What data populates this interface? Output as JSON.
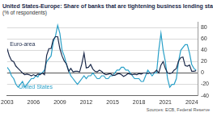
{
  "chart_data": {
    "type": "line",
    "title": "United States-Europe: Share of banks that are tightening business lending standards",
    "subtitle": "(% of respondents)",
    "source": "Sources: ECB, Federal Reserve",
    "x": [
      2003,
      2003.25,
      2003.5,
      2003.75,
      2004,
      2004.25,
      2004.5,
      2004.75,
      2005,
      2005.25,
      2005.5,
      2005.75,
      2006,
      2006.25,
      2006.5,
      2006.75,
      2007,
      2007.25,
      2007.5,
      2007.75,
      2008,
      2008.25,
      2008.5,
      2008.75,
      2009,
      2009.25,
      2009.5,
      2009.75,
      2010,
      2010.25,
      2010.5,
      2010.75,
      2011,
      2011.25,
      2011.5,
      2011.75,
      2012,
      2012.25,
      2012.5,
      2012.75,
      2013,
      2013.25,
      2013.5,
      2013.75,
      2014,
      2014.25,
      2014.5,
      2014.75,
      2015,
      2015.25,
      2015.5,
      2015.75,
      2016,
      2016.25,
      2016.5,
      2016.75,
      2017,
      2017.25,
      2017.5,
      2017.75,
      2018,
      2018.25,
      2018.5,
      2018.75,
      2019,
      2019.25,
      2019.5,
      2019.75,
      2020,
      2020.25,
      2020.5,
      2020.75,
      2021,
      2021.25,
      2021.5,
      2021.75,
      2022,
      2022.25,
      2022.5,
      2022.75,
      2023,
      2023.25,
      2023.5,
      2023.75,
      2024,
      2024.25,
      2024.5
    ],
    "series": [
      {
        "name": "Euro-area",
        "color": "#1c2a4a",
        "values": [
          43,
          30,
          22,
          20,
          12,
          8,
          4,
          0,
          -3,
          -2,
          -3,
          -5,
          -3,
          -5,
          -2,
          -3,
          0,
          -3,
          31,
          43,
          43,
          59,
          64,
          64,
          43,
          30,
          21,
          16,
          3,
          8,
          2,
          3,
          3,
          2,
          16,
          35,
          9,
          10,
          15,
          7,
          3,
          2,
          5,
          3,
          -1,
          -3,
          -2,
          -1,
          -4,
          -4,
          -2,
          -1,
          -3,
          -6,
          -4,
          -1,
          -2,
          -3,
          -2,
          -3,
          -1,
          -2,
          0,
          0,
          -1,
          0,
          0,
          1,
          5,
          0,
          14,
          20,
          8,
          0,
          -1,
          0,
          5,
          8,
          21,
          27,
          28,
          13,
          12,
          14,
          3,
          3,
          4
        ]
      },
      {
        "name": "United States",
        "color": "#2aa0c8",
        "values": [
          10,
          5,
          -5,
          -10,
          -20,
          -25,
          -20,
          -15,
          -25,
          -20,
          -15,
          -10,
          -10,
          -5,
          -7,
          0,
          0,
          5,
          20,
          25,
          30,
          55,
          65,
          84,
          70,
          40,
          30,
          15,
          5,
          -5,
          -10,
          -15,
          -20,
          -15,
          -10,
          -5,
          -10,
          -5,
          -5,
          0,
          -5,
          -10,
          -10,
          -5,
          -5,
          -10,
          -10,
          -5,
          -5,
          0,
          5,
          5,
          10,
          10,
          5,
          5,
          0,
          -5,
          -10,
          -10,
          -10,
          -15,
          -15,
          -5,
          5,
          0,
          -5,
          0,
          0,
          40,
          70,
          40,
          20,
          -10,
          -25,
          -20,
          -20,
          -10,
          20,
          40,
          45,
          50,
          50,
          35,
          15,
          8,
          5
        ]
      }
    ],
    "xlim": [
      2003,
      2024.75
    ],
    "xticks": [
      2003,
      2006,
      2009,
      2012,
      2015,
      2018,
      2021,
      2024
    ],
    "ylim": [
      -40,
      90
    ],
    "yticks": [
      -40,
      -20,
      0,
      20,
      40,
      60,
      80
    ],
    "grid": true
  }
}
